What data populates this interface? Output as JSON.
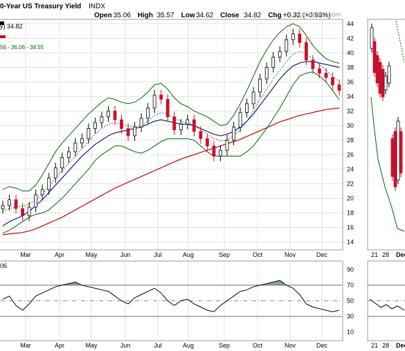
{
  "header": {
    "title": "0-Year US Treasury Yield",
    "symbol": "INDX",
    "ohlc": [
      {
        "label": "Open",
        "value": "35.06"
      },
      {
        "label": "High",
        "value": "35.57"
      },
      {
        "label": "Low",
        "value": "34.62"
      },
      {
        "label": "Close",
        "value": "34.82"
      },
      {
        "label": "Chg",
        "value": "+0.32 (+0.93%)"
      }
    ],
    "watermark": "© StockCharts.com"
  },
  "legend": {
    "price_line": "y) 34.82",
    "bb_line": "56 - 36.06 - 38.55",
    "rsi_line": "06"
  },
  "chart_data": [
    {
      "type": "candlestick",
      "panel": "price",
      "title": "0-Year US Treasury Yield INDX",
      "y_ticks": [
        14,
        16,
        18,
        20,
        22,
        24,
        26,
        28,
        30,
        32,
        34,
        36,
        38,
        40,
        42,
        44
      ],
      "ylim": [
        13,
        44.5
      ],
      "x_labels": [
        "Mar",
        "Apr",
        "May",
        "Jun",
        "Jul",
        "Aug",
        "Sep",
        "Oct",
        "Nov",
        "Dec"
      ],
      "last_close": 34.82,
      "series": [
        {
          "name": "close",
          "color": "#000000",
          "values": [
            19.0,
            19.8,
            18.6,
            17.6,
            18.8,
            20.5,
            21.2,
            22.8,
            24.2,
            25.6,
            26.4,
            27.6,
            28.2,
            29.6,
            30.4,
            31.2,
            32.0,
            30.8,
            29.6,
            28.6,
            29.8,
            31.0,
            32.4,
            34.2,
            33.6,
            31.2,
            29.4,
            30.2,
            30.8,
            29.2,
            28.2,
            27.2,
            25.8,
            26.6,
            28.0,
            29.8,
            31.8,
            33.0,
            34.6,
            36.4,
            38.0,
            39.4,
            40.2,
            41.8,
            42.6,
            41.4,
            39.0,
            37.8,
            37.2,
            36.6,
            35.6,
            34.82
          ]
        },
        {
          "name": "sma_50",
          "color": "#000080",
          "values": [
            16.2,
            16.8,
            17.2,
            17.6,
            18.2,
            19.0,
            19.8,
            20.8,
            21.8,
            22.8,
            23.8,
            24.8,
            25.8,
            26.6,
            27.4,
            28.0,
            28.6,
            29.0,
            29.2,
            29.4,
            29.6,
            29.8,
            30.2,
            30.6,
            30.8,
            30.6,
            30.4,
            30.2,
            30.2,
            30.0,
            29.6,
            29.2,
            28.8,
            28.6,
            28.8,
            29.2,
            29.8,
            30.6,
            31.6,
            32.8,
            34.0,
            35.2,
            36.4,
            37.4,
            38.2,
            38.6,
            38.8,
            38.8,
            38.6,
            38.4,
            38.2,
            38.0
          ]
        },
        {
          "name": "sma_200",
          "color": "#cc0000",
          "values": [
            15.0,
            15.1,
            15.2,
            15.3,
            15.5,
            15.8,
            16.2,
            16.6,
            17.0,
            17.4,
            17.9,
            18.4,
            18.9,
            19.4,
            19.9,
            20.4,
            20.9,
            21.4,
            21.8,
            22.2,
            22.6,
            23.0,
            23.4,
            23.8,
            24.2,
            24.6,
            25.0,
            25.4,
            25.7,
            26.0,
            26.3,
            26.6,
            26.9,
            27.2,
            27.5,
            27.8,
            28.1,
            28.5,
            28.9,
            29.3,
            29.7,
            30.1,
            30.5,
            30.8,
            31.1,
            31.4,
            31.6,
            31.8,
            32.0,
            32.2,
            32.3,
            32.4
          ]
        },
        {
          "name": "bb_mid",
          "color": "#008000",
          "values": [
            18.2,
            18.6,
            18.8,
            18.9,
            19.2,
            19.8,
            20.6,
            21.6,
            22.8,
            23.8,
            24.8,
            25.8,
            26.8,
            27.8,
            28.8,
            29.6,
            30.2,
            30.4,
            30.2,
            29.9,
            29.8,
            30.0,
            30.6,
            31.4,
            31.8,
            31.6,
            31.0,
            30.6,
            30.4,
            30.0,
            29.4,
            28.8,
            28.2,
            27.9,
            28.0,
            28.6,
            29.4,
            30.6,
            32.0,
            33.6,
            35.0,
            36.4,
            37.6,
            38.8,
            39.8,
            40.2,
            39.8,
            39.2,
            38.4,
            37.6,
            36.8,
            36.06
          ]
        },
        {
          "name": "bb_upper",
          "color": "#006400",
          "values": [
            21.2,
            21.6,
            21.4,
            21.0,
            21.0,
            21.8,
            23.2,
            24.8,
            26.4,
            27.6,
            28.6,
            29.6,
            30.6,
            31.6,
            32.4,
            33.2,
            33.8,
            33.6,
            33.2,
            33.0,
            33.2,
            33.8,
            34.6,
            35.6,
            35.8,
            35.0,
            33.8,
            33.0,
            32.6,
            32.0,
            31.6,
            31.2,
            30.6,
            30.0,
            30.2,
            31.4,
            33.0,
            34.8,
            36.8,
            38.8,
            40.4,
            41.8,
            42.8,
            43.6,
            44.0,
            43.6,
            42.4,
            41.0,
            40.0,
            39.2,
            38.8,
            38.55
          ]
        },
        {
          "name": "bb_lower",
          "color": "#006400",
          "values": [
            15.2,
            15.6,
            16.2,
            16.8,
            17.4,
            17.8,
            18.0,
            18.4,
            19.2,
            20.0,
            21.0,
            22.0,
            23.0,
            24.0,
            25.2,
            26.0,
            26.6,
            27.2,
            27.2,
            26.8,
            26.4,
            26.2,
            26.6,
            27.2,
            27.8,
            28.2,
            28.2,
            28.2,
            28.2,
            28.0,
            27.2,
            26.4,
            25.8,
            25.8,
            25.8,
            25.8,
            25.8,
            26.4,
            27.2,
            28.4,
            29.6,
            31.0,
            32.4,
            34.0,
            35.6,
            36.8,
            37.2,
            37.4,
            36.8,
            36.0,
            34.8,
            33.56
          ]
        }
      ]
    },
    {
      "type": "line",
      "panel": "rsi",
      "y_ticks": [
        10,
        30,
        50,
        70,
        90
      ],
      "ylim": [
        0,
        100
      ],
      "reference_lines": [
        30,
        50,
        70
      ],
      "x_labels": [
        "Mar",
        "Apr",
        "May",
        "Jun",
        "Jul",
        "Aug",
        "Sep",
        "Oct",
        "Nov",
        "Dec"
      ],
      "series": [
        {
          "name": "rsi",
          "color": "#000000",
          "values": [
            52,
            56,
            44,
            38,
            46,
            56,
            60,
            64,
            68,
            70,
            72,
            74,
            70,
            68,
            66,
            64,
            62,
            56,
            50,
            46,
            54,
            58,
            62,
            66,
            60,
            50,
            44,
            50,
            52,
            46,
            42,
            38,
            36,
            44,
            50,
            56,
            62,
            64,
            68,
            70,
            72,
            74,
            76,
            70,
            66,
            58,
            46,
            42,
            40,
            38,
            36,
            38
          ]
        }
      ]
    },
    {
      "type": "candlestick",
      "panel": "side-daily",
      "x_labels": [
        "21",
        "28",
        "Dec"
      ],
      "note": "zoomed daily view"
    }
  ]
}
